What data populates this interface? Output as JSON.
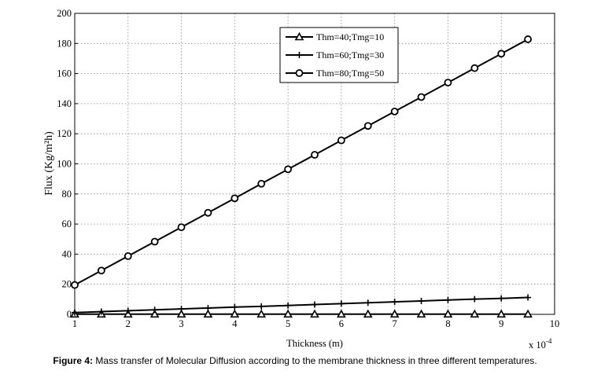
{
  "chart_data": {
    "type": "line",
    "xlabel": "Thickness (m)",
    "ylabel": "Flux (Kg/m²h)",
    "x_multiplier": "x 10",
    "x_multiplier_exp": "-4",
    "xlim": [
      1,
      10
    ],
    "ylim": [
      0,
      200
    ],
    "xticks": [
      1,
      2,
      3,
      4,
      5,
      6,
      7,
      8,
      9,
      10
    ],
    "yticks": [
      0,
      20,
      40,
      60,
      80,
      100,
      120,
      140,
      160,
      180,
      200
    ],
    "grid": true,
    "legend_position": "top-center",
    "x": [
      1,
      1.5,
      2,
      2.5,
      3,
      3.5,
      4,
      4.5,
      5,
      5.5,
      6,
      6.5,
      7,
      7.5,
      8,
      8.5,
      9,
      9.5
    ],
    "series": [
      {
        "name": "Thm=40;Tmg=10",
        "marker": "triangle",
        "values": [
          0.1,
          0.1,
          0.1,
          0.1,
          0.1,
          0.1,
          0.1,
          0.1,
          0.1,
          0.1,
          0.1,
          0.1,
          0.1,
          0.1,
          0.1,
          0.1,
          0.1,
          0.1
        ]
      },
      {
        "name": "Thm=60;Tmg=30",
        "marker": "plus",
        "values": [
          1.2,
          1.8,
          2.4,
          3.0,
          3.6,
          4.2,
          4.8,
          5.3,
          5.9,
          6.5,
          7.1,
          7.7,
          8.3,
          8.9,
          9.5,
          10.1,
          10.6,
          11.2
        ]
      },
      {
        "name": "Thm=80;Tmg=50",
        "marker": "circle",
        "values": [
          19.5,
          29.1,
          38.7,
          48.3,
          57.9,
          67.5,
          77.1,
          86.8,
          96.4,
          106.0,
          115.6,
          125.2,
          134.8,
          144.4,
          154.0,
          163.6,
          173.2,
          182.8
        ]
      }
    ]
  },
  "caption": {
    "label": "Figure 4:",
    "text": " Mass transfer of Molecular Diffusion according to the membrane thickness in three different temperatures."
  }
}
